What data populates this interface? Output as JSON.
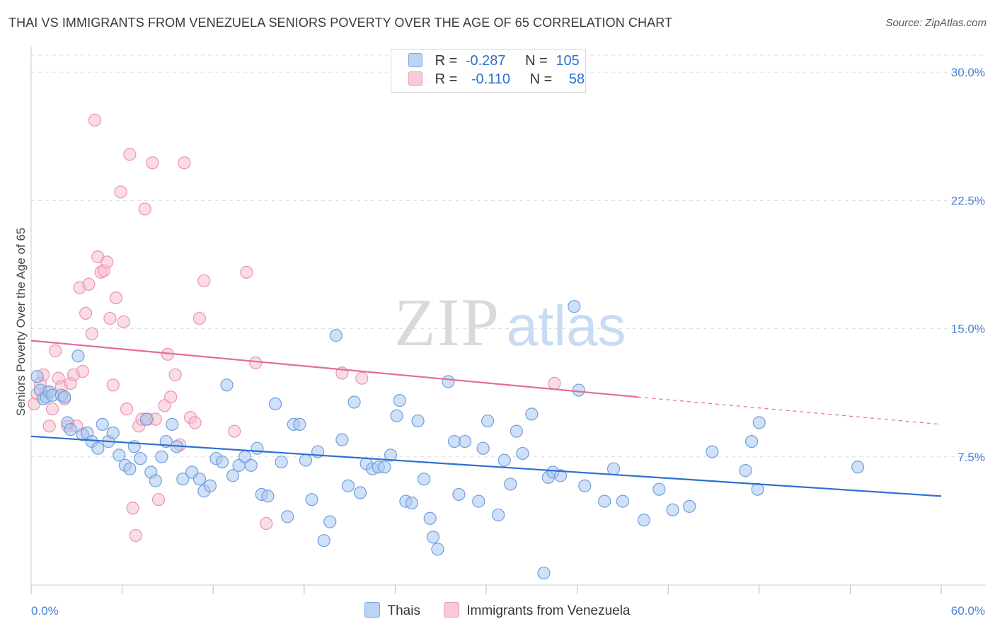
{
  "title": "THAI VS IMMIGRANTS FROM VENEZUELA SENIORS POVERTY OVER THE AGE OF 65 CORRELATION CHART",
  "source": "Source: ZipAtlas.com",
  "watermark": {
    "zip": "ZIP",
    "atlas": "atlas"
  },
  "legend_top": {
    "rows": [
      {
        "r_label": "R =",
        "r_value": "-0.287",
        "n_label": "N =",
        "n_value": "105"
      },
      {
        "r_label": "R =",
        "r_value": "-0.110",
        "n_label": "N =",
        "n_value": "58"
      }
    ]
  },
  "legend_bottom": {
    "series_a": "Thais",
    "series_b": "Immigrants from Venezuela"
  },
  "colors": {
    "thais_fill": "#a9c6ef",
    "thais_stroke": "#6f9fe0",
    "thais_line": "#2e6fd1",
    "ven_fill": "#f6bfd0",
    "ven_stroke": "#ee92ae",
    "ven_line": "#e56b95",
    "axis_text": "#4a7fd4",
    "grid": "#dddddd"
  },
  "chart_data": {
    "type": "scatter",
    "title": "THAI VS IMMIGRANTS FROM VENEZUELA SENIORS POVERTY OVER THE AGE OF 65 CORRELATION CHART",
    "xlabel": "",
    "ylabel": "Seniors Poverty Over the Age of 65",
    "xlim": [
      0,
      60
    ],
    "ylim": [
      0,
      31
    ],
    "x_tick_labels": [
      "0.0%",
      "60.0%"
    ],
    "y_ticks": [
      7.5,
      15.0,
      22.5,
      30.0
    ],
    "y_tick_labels": [
      "7.5%",
      "15.0%",
      "22.5%",
      "30.0%"
    ],
    "grid": "horizontal dashed",
    "legend_position": "top-center",
    "series": [
      {
        "name": "Thais",
        "r": -0.287,
        "n": 105,
        "trend": {
          "x0": 0,
          "y0": 8.7,
          "x1": 60,
          "y1": 5.2
        },
        "points": [
          [
            0.4,
            12.2
          ],
          [
            0.6,
            11.4
          ],
          [
            0.8,
            10.9
          ],
          [
            1.0,
            11.0
          ],
          [
            1.2,
            11.3
          ],
          [
            1.4,
            11.1
          ],
          [
            2.0,
            11.1
          ],
          [
            2.2,
            11.0
          ],
          [
            3.1,
            13.4
          ],
          [
            2.4,
            9.5
          ],
          [
            2.6,
            9.1
          ],
          [
            3.4,
            8.8
          ],
          [
            3.7,
            8.9
          ],
          [
            4.0,
            8.4
          ],
          [
            4.4,
            8.0
          ],
          [
            4.7,
            9.4
          ],
          [
            5.1,
            8.4
          ],
          [
            5.4,
            8.9
          ],
          [
            5.8,
            7.6
          ],
          [
            6.2,
            7.0
          ],
          [
            6.5,
            6.8
          ],
          [
            6.8,
            8.1
          ],
          [
            7.2,
            7.4
          ],
          [
            7.6,
            9.7
          ],
          [
            7.9,
            6.6
          ],
          [
            8.2,
            6.1
          ],
          [
            8.6,
            7.5
          ],
          [
            8.9,
            8.4
          ],
          [
            9.3,
            9.4
          ],
          [
            9.6,
            8.1
          ],
          [
            10.0,
            6.2
          ],
          [
            10.6,
            6.6
          ],
          [
            11.1,
            6.2
          ],
          [
            11.4,
            5.5
          ],
          [
            11.8,
            5.8
          ],
          [
            12.2,
            7.4
          ],
          [
            12.6,
            7.2
          ],
          [
            12.9,
            11.7
          ],
          [
            13.3,
            6.4
          ],
          [
            13.7,
            7.0
          ],
          [
            14.1,
            7.5
          ],
          [
            14.5,
            7.0
          ],
          [
            14.9,
            8.0
          ],
          [
            15.2,
            5.3
          ],
          [
            15.6,
            5.2
          ],
          [
            16.1,
            10.6
          ],
          [
            16.5,
            7.2
          ],
          [
            16.9,
            4.0
          ],
          [
            17.3,
            9.4
          ],
          [
            17.7,
            9.4
          ],
          [
            18.1,
            7.3
          ],
          [
            18.5,
            5.0
          ],
          [
            18.9,
            7.8
          ],
          [
            19.3,
            2.6
          ],
          [
            19.7,
            3.7
          ],
          [
            20.1,
            14.6
          ],
          [
            20.5,
            8.5
          ],
          [
            20.9,
            5.8
          ],
          [
            21.3,
            10.7
          ],
          [
            21.7,
            5.4
          ],
          [
            22.1,
            7.1
          ],
          [
            22.5,
            6.8
          ],
          [
            22.9,
            6.9
          ],
          [
            23.3,
            6.9
          ],
          [
            23.7,
            7.6
          ],
          [
            24.1,
            9.9
          ],
          [
            24.3,
            10.8
          ],
          [
            24.7,
            4.9
          ],
          [
            25.1,
            4.8
          ],
          [
            25.5,
            9.6
          ],
          [
            25.9,
            6.2
          ],
          [
            26.3,
            3.9
          ],
          [
            26.5,
            2.8
          ],
          [
            26.8,
            2.1
          ],
          [
            27.5,
            11.9
          ],
          [
            27.9,
            8.4
          ],
          [
            28.2,
            5.3
          ],
          [
            28.6,
            8.4
          ],
          [
            29.5,
            4.9
          ],
          [
            29.8,
            8.0
          ],
          [
            30.1,
            9.6
          ],
          [
            30.8,
            4.1
          ],
          [
            31.2,
            7.3
          ],
          [
            31.6,
            5.9
          ],
          [
            32.0,
            9.0
          ],
          [
            32.4,
            7.7
          ],
          [
            33.0,
            10.0
          ],
          [
            33.8,
            0.7
          ],
          [
            34.1,
            6.3
          ],
          [
            34.4,
            6.6
          ],
          [
            34.9,
            6.4
          ],
          [
            35.8,
            16.3
          ],
          [
            36.1,
            11.4
          ],
          [
            36.5,
            5.8
          ],
          [
            37.8,
            4.9
          ],
          [
            38.4,
            6.8
          ],
          [
            39.0,
            4.9
          ],
          [
            40.4,
            3.8
          ],
          [
            41.4,
            5.6
          ],
          [
            42.3,
            4.4
          ],
          [
            43.4,
            4.6
          ],
          [
            44.9,
            7.8
          ],
          [
            47.1,
            6.7
          ],
          [
            47.5,
            8.4
          ],
          [
            47.9,
            5.6
          ],
          [
            48.0,
            9.5
          ],
          [
            54.5,
            6.9
          ]
        ]
      },
      {
        "name": "Immigrants from Venezuela",
        "r": -0.11,
        "n": 58,
        "trend": {
          "x0": 0,
          "y0": 14.3,
          "x1": 40,
          "y1": 11.0,
          "dash_to_x": 60,
          "dash_to_y": 9.4
        },
        "points": [
          [
            0.2,
            10.6
          ],
          [
            0.4,
            11.2
          ],
          [
            0.6,
            11.8
          ],
          [
            0.8,
            12.3
          ],
          [
            1.0,
            11.3
          ],
          [
            1.2,
            9.3
          ],
          [
            1.4,
            10.3
          ],
          [
            1.6,
            13.7
          ],
          [
            1.8,
            12.1
          ],
          [
            2.0,
            11.6
          ],
          [
            2.2,
            10.9
          ],
          [
            2.4,
            9.3
          ],
          [
            2.6,
            11.8
          ],
          [
            2.8,
            12.3
          ],
          [
            3.0,
            9.3
          ],
          [
            3.2,
            17.4
          ],
          [
            3.4,
            12.5
          ],
          [
            3.6,
            15.9
          ],
          [
            3.8,
            17.6
          ],
          [
            4.0,
            14.7
          ],
          [
            4.2,
            27.2
          ],
          [
            4.4,
            19.2
          ],
          [
            4.6,
            18.3
          ],
          [
            4.8,
            18.4
          ],
          [
            5.0,
            18.9
          ],
          [
            5.2,
            15.6
          ],
          [
            5.4,
            11.7
          ],
          [
            5.6,
            16.8
          ],
          [
            5.9,
            23.0
          ],
          [
            6.1,
            15.4
          ],
          [
            6.3,
            10.3
          ],
          [
            6.5,
            25.2
          ],
          [
            6.7,
            4.5
          ],
          [
            6.9,
            2.9
          ],
          [
            7.1,
            9.3
          ],
          [
            7.3,
            9.7
          ],
          [
            7.5,
            22.0
          ],
          [
            7.7,
            9.7
          ],
          [
            8.0,
            24.7
          ],
          [
            8.2,
            9.7
          ],
          [
            8.4,
            5.0
          ],
          [
            8.8,
            10.5
          ],
          [
            9.0,
            13.5
          ],
          [
            9.2,
            11.0
          ],
          [
            9.5,
            12.3
          ],
          [
            9.8,
            8.2
          ],
          [
            10.1,
            24.7
          ],
          [
            10.5,
            9.8
          ],
          [
            10.8,
            9.5
          ],
          [
            11.1,
            15.6
          ],
          [
            11.4,
            17.8
          ],
          [
            13.4,
            9.0
          ],
          [
            14.2,
            18.3
          ],
          [
            14.8,
            13.0
          ],
          [
            15.5,
            3.6
          ],
          [
            20.5,
            12.4
          ],
          [
            21.8,
            12.1
          ],
          [
            34.5,
            11.8
          ]
        ]
      }
    ]
  }
}
